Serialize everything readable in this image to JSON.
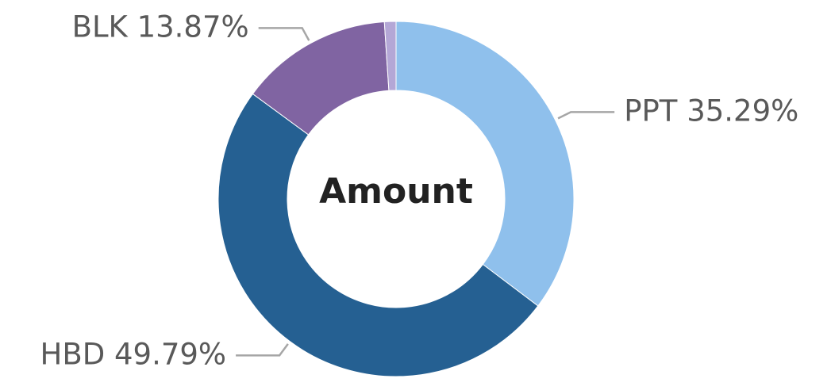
{
  "chart_data": {
    "type": "donut",
    "title": "Amount",
    "categories": [
      "PPT",
      "HBD",
      "BLK",
      null
    ],
    "values": [
      35.29,
      49.79,
      13.87,
      1.05
    ],
    "value_labels": [
      "35.29%",
      "49.79%",
      "13.87%",
      null
    ],
    "colors": [
      "#8fc0ec",
      "#256092",
      "#8064a2",
      "#b4a7d6"
    ]
  }
}
